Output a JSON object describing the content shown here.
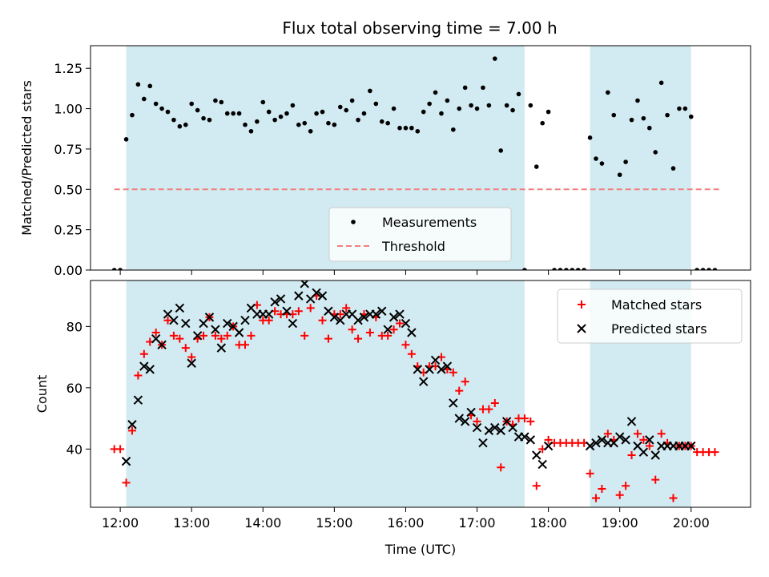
{
  "title": "Flux total observing time = 7.00 h",
  "colors": {
    "band": "#add8e6",
    "measurement": "#000000",
    "threshold": "#f08080",
    "matched": "#ff0000",
    "predicted": "#000000"
  },
  "chart_data": [
    {
      "type": "scatter",
      "ylabel": "Matched/Predicted stars",
      "xlim": [
        "11:35",
        "20:50"
      ],
      "ylim": [
        0,
        1.39
      ],
      "x_ticks": [
        "12:00",
        "13:00",
        "14:00",
        "15:00",
        "16:00",
        "17:00",
        "18:00",
        "19:00",
        "20:00"
      ],
      "y_ticks": [
        "0.00",
        "0.25",
        "0.50",
        "0.75",
        "1.00",
        "1.25"
      ],
      "shaded_intervals": [
        [
          "12:05",
          "17:40"
        ],
        [
          "18:35",
          "20:00"
        ]
      ],
      "threshold": {
        "name": "Threshold",
        "value": 0.5,
        "x_range": [
          "11:55",
          "20:25"
        ]
      },
      "legend": {
        "placement": "lower-center",
        "entries": [
          "Measurements",
          "Threshold"
        ]
      },
      "series": [
        {
          "name": "Measurements",
          "x": [
            "11:55",
            "12:00",
            "12:05",
            "12:10",
            "12:15",
            "12:20",
            "12:25",
            "12:30",
            "12:35",
            "12:40",
            "12:45",
            "12:50",
            "12:55",
            "13:00",
            "13:05",
            "13:10",
            "13:15",
            "13:20",
            "13:25",
            "13:30",
            "13:35",
            "13:40",
            "13:45",
            "13:50",
            "13:55",
            "14:00",
            "14:05",
            "14:10",
            "14:15",
            "14:20",
            "14:25",
            "14:30",
            "14:35",
            "14:40",
            "14:45",
            "14:50",
            "14:55",
            "15:00",
            "15:05",
            "15:10",
            "15:15",
            "15:20",
            "15:25",
            "15:30",
            "15:35",
            "15:40",
            "15:45",
            "15:50",
            "15:55",
            "16:00",
            "16:05",
            "16:10",
            "16:15",
            "16:20",
            "16:25",
            "16:30",
            "16:35",
            "16:40",
            "16:45",
            "16:50",
            "16:55",
            "17:00",
            "17:05",
            "17:10",
            "17:15",
            "17:20",
            "17:25",
            "17:30",
            "17:35",
            "17:40",
            "17:45",
            "17:50",
            "17:55",
            "18:00",
            "18:05",
            "18:10",
            "18:15",
            "18:20",
            "18:25",
            "18:30",
            "18:35",
            "18:40",
            "18:45",
            "18:50",
            "18:55",
            "19:00",
            "19:05",
            "19:10",
            "19:15",
            "19:20",
            "19:25",
            "19:30",
            "19:35",
            "19:40",
            "19:45",
            "19:50",
            "19:55",
            "20:00",
            "20:05",
            "20:10",
            "20:15",
            "20:20"
          ],
          "y": [
            0,
            0,
            0.81,
            0.96,
            1.15,
            1.06,
            1.14,
            1.03,
            1.0,
            0.98,
            0.93,
            0.89,
            0.9,
            1.03,
            0.99,
            0.94,
            0.93,
            1.05,
            1.04,
            0.97,
            0.97,
            0.97,
            0.9,
            0.86,
            0.92,
            1.04,
            0.98,
            0.93,
            0.95,
            0.97,
            1.02,
            0.9,
            0.91,
            0.86,
            0.97,
            0.98,
            0.91,
            0.9,
            1.01,
            0.99,
            1.05,
            0.93,
            0.97,
            1.11,
            1.03,
            0.92,
            0.91,
            1.0,
            0.88,
            0.88,
            0.88,
            0.86,
            0.98,
            1.03,
            1.1,
            0.97,
            1.05,
            0.87,
            1.0,
            1.13,
            1.02,
            1.0,
            1.13,
            1.02,
            1.31,
            0.74,
            1.02,
            0.99,
            1.09,
            0,
            1.02,
            0.64,
            0.91,
            0.98,
            0,
            0,
            0,
            0,
            0,
            0,
            0.82,
            0.69,
            0.66,
            1.1,
            0.96,
            0.59,
            0.67,
            0.93,
            1.05,
            0.94,
            0.88,
            0.73,
            1.16,
            0.96,
            0.63,
            1.0,
            1.0,
            0.95,
            0,
            0,
            0,
            0
          ]
        }
      ]
    },
    {
      "type": "scatter",
      "xlabel": "Time (UTC)",
      "ylabel": "Count",
      "xlim": [
        "11:35",
        "20:50"
      ],
      "ylim": [
        21,
        95
      ],
      "x_ticks": [
        "12:00",
        "13:00",
        "14:00",
        "15:00",
        "16:00",
        "17:00",
        "18:00",
        "19:00",
        "20:00"
      ],
      "y_ticks": [
        "40",
        "60",
        "80"
      ],
      "shaded_intervals": [
        [
          "12:05",
          "17:40"
        ],
        [
          "18:35",
          "20:00"
        ]
      ],
      "legend": {
        "placement": "top-right",
        "entries": [
          "Matched stars",
          "Predicted stars"
        ]
      },
      "series": [
        {
          "name": "Matched stars",
          "x": [
            "11:55",
            "12:00",
            "12:05",
            "12:10",
            "12:15",
            "12:20",
            "12:25",
            "12:30",
            "12:35",
            "12:40",
            "12:45",
            "12:50",
            "12:55",
            "13:00",
            "13:05",
            "13:10",
            "13:15",
            "13:20",
            "13:25",
            "13:30",
            "13:35",
            "13:40",
            "13:45",
            "13:50",
            "13:55",
            "14:00",
            "14:05",
            "14:10",
            "14:15",
            "14:20",
            "14:25",
            "14:30",
            "14:35",
            "14:40",
            "14:45",
            "14:50",
            "14:55",
            "15:00",
            "15:05",
            "15:10",
            "15:15",
            "15:20",
            "15:25",
            "15:30",
            "15:35",
            "15:40",
            "15:45",
            "15:50",
            "15:55",
            "16:00",
            "16:05",
            "16:10",
            "16:15",
            "16:20",
            "16:25",
            "16:30",
            "16:35",
            "16:40",
            "16:45",
            "16:50",
            "16:55",
            "17:00",
            "17:05",
            "17:10",
            "17:15",
            "17:20",
            "17:25",
            "17:30",
            "17:35",
            "17:40",
            "17:45",
            "17:50",
            "17:55",
            "18:00",
            "18:05",
            "18:10",
            "18:15",
            "18:20",
            "18:25",
            "18:30",
            "18:35",
            "18:40",
            "18:45",
            "18:50",
            "18:55",
            "19:00",
            "19:05",
            "19:10",
            "19:15",
            "19:20",
            "19:25",
            "19:30",
            "19:35",
            "19:40",
            "19:45",
            "19:50",
            "19:55",
            "20:00",
            "20:05",
            "20:10",
            "20:15",
            "20:20"
          ],
          "y": [
            40,
            40,
            29,
            46,
            64,
            71,
            75,
            78,
            74,
            82,
            77,
            76,
            73,
            70,
            76,
            77,
            83,
            77,
            76,
            77,
            80,
            74,
            74,
            77,
            87,
            82,
            82,
            85,
            84,
            84,
            84,
            85,
            77,
            86,
            90,
            82,
            76,
            84,
            84,
            86,
            79,
            76,
            84,
            78,
            83,
            77,
            77,
            79,
            81,
            74,
            71,
            67,
            65,
            67,
            67,
            70,
            66,
            65,
            59,
            62,
            51,
            49,
            53,
            53,
            55,
            34,
            49,
            48,
            50,
            50,
            49,
            28,
            40,
            43,
            42,
            42,
            42,
            42,
            42,
            42,
            32,
            24,
            27,
            45,
            43,
            25,
            28,
            38,
            45,
            43,
            41,
            30,
            45,
            42,
            24,
            41,
            41,
            41,
            39,
            39,
            39,
            39
          ]
        },
        {
          "name": "Predicted stars",
          "x": [
            "12:05",
            "12:10",
            "12:15",
            "12:20",
            "12:25",
            "12:30",
            "12:35",
            "12:40",
            "12:45",
            "12:50",
            "12:55",
            "13:00",
            "13:05",
            "13:10",
            "13:15",
            "13:20",
            "13:25",
            "13:30",
            "13:35",
            "13:40",
            "13:45",
            "13:50",
            "13:55",
            "14:00",
            "14:05",
            "14:10",
            "14:15",
            "14:20",
            "14:25",
            "14:30",
            "14:35",
            "14:40",
            "14:45",
            "14:50",
            "14:55",
            "15:00",
            "15:05",
            "15:10",
            "15:15",
            "15:20",
            "15:25",
            "15:30",
            "15:35",
            "15:40",
            "15:45",
            "15:50",
            "15:55",
            "16:00",
            "16:05",
            "16:10",
            "16:15",
            "16:20",
            "16:25",
            "16:30",
            "16:35",
            "16:40",
            "16:45",
            "16:50",
            "16:55",
            "17:00",
            "17:05",
            "17:10",
            "17:15",
            "17:20",
            "17:25",
            "17:30",
            "17:35",
            "17:40",
            "17:45",
            "17:50",
            "17:55",
            "18:00",
            "18:35",
            "18:40",
            "18:45",
            "18:50",
            "18:55",
            "19:00",
            "19:05",
            "19:10",
            "19:15",
            "19:20",
            "19:25",
            "19:30",
            "19:35",
            "19:40",
            "19:45",
            "19:50",
            "19:55",
            "20:00"
          ],
          "y": [
            36,
            48,
            56,
            67,
            66,
            76,
            74,
            84,
            82,
            86,
            81,
            68,
            77,
            81,
            83,
            79,
            73,
            81,
            80,
            78,
            82,
            86,
            84,
            84,
            84,
            88,
            89,
            85,
            81,
            90,
            94,
            89,
            91,
            90,
            85,
            83,
            82,
            84,
            84,
            82,
            83,
            84,
            84,
            85,
            79,
            83,
            84,
            81,
            78,
            66,
            62,
            66,
            69,
            66,
            67,
            55,
            50,
            49,
            52,
            47,
            42,
            46,
            47,
            46,
            49,
            47,
            44,
            44,
            43,
            38,
            35,
            41,
            41,
            42,
            43,
            42,
            42,
            44,
            43,
            49,
            41,
            39,
            43,
            38,
            41,
            41,
            41,
            41,
            41,
            41
          ]
        }
      ]
    }
  ]
}
